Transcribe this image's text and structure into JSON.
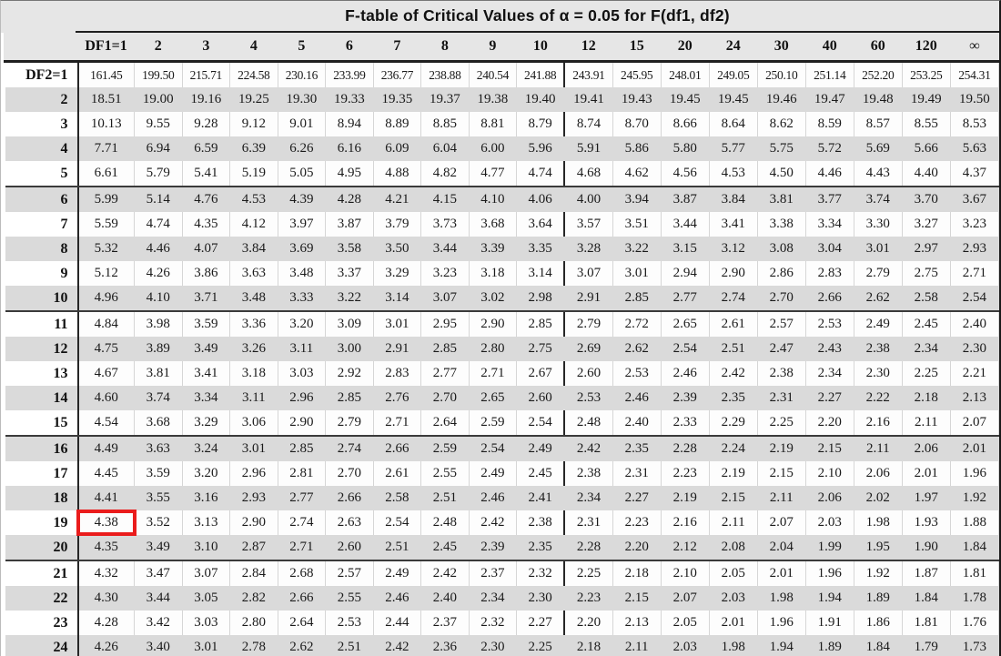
{
  "title": "F-table of Critical Values of α = 0.05 for F(df1, df2)",
  "table": {
    "columns": [
      "DF1=1",
      "2",
      "3",
      "4",
      "5",
      "6",
      "7",
      "8",
      "9",
      "10",
      "12",
      "15",
      "20",
      "24",
      "30",
      "40",
      "60",
      "120",
      "∞"
    ],
    "corner_label": "",
    "rows": [
      {
        "label": "DF2=1",
        "values": [
          "161.45",
          "199.50",
          "215.71",
          "224.58",
          "230.16",
          "233.99",
          "236.77",
          "238.88",
          "240.54",
          "241.88",
          "243.91",
          "245.95",
          "248.01",
          "249.05",
          "250.10",
          "251.14",
          "252.20",
          "253.25",
          "254.31"
        ]
      },
      {
        "label": "2",
        "values": [
          "18.51",
          "19.00",
          "19.16",
          "19.25",
          "19.30",
          "19.33",
          "19.35",
          "19.37",
          "19.38",
          "19.40",
          "19.41",
          "19.43",
          "19.45",
          "19.45",
          "19.46",
          "19.47",
          "19.48",
          "19.49",
          "19.50"
        ]
      },
      {
        "label": "3",
        "values": [
          "10.13",
          "9.55",
          "9.28",
          "9.12",
          "9.01",
          "8.94",
          "8.89",
          "8.85",
          "8.81",
          "8.79",
          "8.74",
          "8.70",
          "8.66",
          "8.64",
          "8.62",
          "8.59",
          "8.57",
          "8.55",
          "8.53"
        ]
      },
      {
        "label": "4",
        "values": [
          "7.71",
          "6.94",
          "6.59",
          "6.39",
          "6.26",
          "6.16",
          "6.09",
          "6.04",
          "6.00",
          "5.96",
          "5.91",
          "5.86",
          "5.80",
          "5.77",
          "5.75",
          "5.72",
          "5.69",
          "5.66",
          "5.63"
        ]
      },
      {
        "label": "5",
        "values": [
          "6.61",
          "5.79",
          "5.41",
          "5.19",
          "5.05",
          "4.95",
          "4.88",
          "4.82",
          "4.77",
          "4.74",
          "4.68",
          "4.62",
          "4.56",
          "4.53",
          "4.50",
          "4.46",
          "4.43",
          "4.40",
          "4.37"
        ]
      },
      {
        "label": "6",
        "values": [
          "5.99",
          "5.14",
          "4.76",
          "4.53",
          "4.39",
          "4.28",
          "4.21",
          "4.15",
          "4.10",
          "4.06",
          "4.00",
          "3.94",
          "3.87",
          "3.84",
          "3.81",
          "3.77",
          "3.74",
          "3.70",
          "3.67"
        ]
      },
      {
        "label": "7",
        "values": [
          "5.59",
          "4.74",
          "4.35",
          "4.12",
          "3.97",
          "3.87",
          "3.79",
          "3.73",
          "3.68",
          "3.64",
          "3.57",
          "3.51",
          "3.44",
          "3.41",
          "3.38",
          "3.34",
          "3.30",
          "3.27",
          "3.23"
        ]
      },
      {
        "label": "8",
        "values": [
          "5.32",
          "4.46",
          "4.07",
          "3.84",
          "3.69",
          "3.58",
          "3.50",
          "3.44",
          "3.39",
          "3.35",
          "3.28",
          "3.22",
          "3.15",
          "3.12",
          "3.08",
          "3.04",
          "3.01",
          "2.97",
          "2.93"
        ]
      },
      {
        "label": "9",
        "values": [
          "5.12",
          "4.26",
          "3.86",
          "3.63",
          "3.48",
          "3.37",
          "3.29",
          "3.23",
          "3.18",
          "3.14",
          "3.07",
          "3.01",
          "2.94",
          "2.90",
          "2.86",
          "2.83",
          "2.79",
          "2.75",
          "2.71"
        ]
      },
      {
        "label": "10",
        "values": [
          "4.96",
          "4.10",
          "3.71",
          "3.48",
          "3.33",
          "3.22",
          "3.14",
          "3.07",
          "3.02",
          "2.98",
          "2.91",
          "2.85",
          "2.77",
          "2.74",
          "2.70",
          "2.66",
          "2.62",
          "2.58",
          "2.54"
        ]
      },
      {
        "label": "11",
        "values": [
          "4.84",
          "3.98",
          "3.59",
          "3.36",
          "3.20",
          "3.09",
          "3.01",
          "2.95",
          "2.90",
          "2.85",
          "2.79",
          "2.72",
          "2.65",
          "2.61",
          "2.57",
          "2.53",
          "2.49",
          "2.45",
          "2.40"
        ]
      },
      {
        "label": "12",
        "values": [
          "4.75",
          "3.89",
          "3.49",
          "3.26",
          "3.11",
          "3.00",
          "2.91",
          "2.85",
          "2.80",
          "2.75",
          "2.69",
          "2.62",
          "2.54",
          "2.51",
          "2.47",
          "2.43",
          "2.38",
          "2.34",
          "2.30"
        ]
      },
      {
        "label": "13",
        "values": [
          "4.67",
          "3.81",
          "3.41",
          "3.18",
          "3.03",
          "2.92",
          "2.83",
          "2.77",
          "2.71",
          "2.67",
          "2.60",
          "2.53",
          "2.46",
          "2.42",
          "2.38",
          "2.34",
          "2.30",
          "2.25",
          "2.21"
        ]
      },
      {
        "label": "14",
        "values": [
          "4.60",
          "3.74",
          "3.34",
          "3.11",
          "2.96",
          "2.85",
          "2.76",
          "2.70",
          "2.65",
          "2.60",
          "2.53",
          "2.46",
          "2.39",
          "2.35",
          "2.31",
          "2.27",
          "2.22",
          "2.18",
          "2.13"
        ]
      },
      {
        "label": "15",
        "values": [
          "4.54",
          "3.68",
          "3.29",
          "3.06",
          "2.90",
          "2.79",
          "2.71",
          "2.64",
          "2.59",
          "2.54",
          "2.48",
          "2.40",
          "2.33",
          "2.29",
          "2.25",
          "2.20",
          "2.16",
          "2.11",
          "2.07"
        ]
      },
      {
        "label": "16",
        "values": [
          "4.49",
          "3.63",
          "3.24",
          "3.01",
          "2.85",
          "2.74",
          "2.66",
          "2.59",
          "2.54",
          "2.49",
          "2.42",
          "2.35",
          "2.28",
          "2.24",
          "2.19",
          "2.15",
          "2.11",
          "2.06",
          "2.01"
        ]
      },
      {
        "label": "17",
        "values": [
          "4.45",
          "3.59",
          "3.20",
          "2.96",
          "2.81",
          "2.70",
          "2.61",
          "2.55",
          "2.49",
          "2.45",
          "2.38",
          "2.31",
          "2.23",
          "2.19",
          "2.15",
          "2.10",
          "2.06",
          "2.01",
          "1.96"
        ]
      },
      {
        "label": "18",
        "values": [
          "4.41",
          "3.55",
          "3.16",
          "2.93",
          "2.77",
          "2.66",
          "2.58",
          "2.51",
          "2.46",
          "2.41",
          "2.34",
          "2.27",
          "2.19",
          "2.15",
          "2.11",
          "2.06",
          "2.02",
          "1.97",
          "1.92"
        ]
      },
      {
        "label": "19",
        "values": [
          "4.38",
          "3.52",
          "3.13",
          "2.90",
          "2.74",
          "2.63",
          "2.54",
          "2.48",
          "2.42",
          "2.38",
          "2.31",
          "2.23",
          "2.16",
          "2.11",
          "2.07",
          "2.03",
          "1.98",
          "1.93",
          "1.88"
        ]
      },
      {
        "label": "20",
        "values": [
          "4.35",
          "3.49",
          "3.10",
          "2.87",
          "2.71",
          "2.60",
          "2.51",
          "2.45",
          "2.39",
          "2.35",
          "2.28",
          "2.20",
          "2.12",
          "2.08",
          "2.04",
          "1.99",
          "1.95",
          "1.90",
          "1.84"
        ]
      },
      {
        "label": "21",
        "values": [
          "4.32",
          "3.47",
          "3.07",
          "2.84",
          "2.68",
          "2.57",
          "2.49",
          "2.42",
          "2.37",
          "2.32",
          "2.25",
          "2.18",
          "2.10",
          "2.05",
          "2.01",
          "1.96",
          "1.92",
          "1.87",
          "1.81"
        ]
      },
      {
        "label": "22",
        "values": [
          "4.30",
          "3.44",
          "3.05",
          "2.82",
          "2.66",
          "2.55",
          "2.46",
          "2.40",
          "2.34",
          "2.30",
          "2.23",
          "2.15",
          "2.07",
          "2.03",
          "1.98",
          "1.94",
          "1.89",
          "1.84",
          "1.78"
        ]
      },
      {
        "label": "23",
        "values": [
          "4.28",
          "3.42",
          "3.03",
          "2.80",
          "2.64",
          "2.53",
          "2.44",
          "2.37",
          "2.32",
          "2.27",
          "2.20",
          "2.13",
          "2.05",
          "2.01",
          "1.96",
          "1.91",
          "1.86",
          "1.81",
          "1.76"
        ]
      },
      {
        "label": "24",
        "values": [
          "4.26",
          "3.40",
          "3.01",
          "2.78",
          "2.62",
          "2.51",
          "2.42",
          "2.36",
          "2.30",
          "2.25",
          "2.18",
          "2.11",
          "2.03",
          "1.98",
          "1.94",
          "1.89",
          "1.84",
          "1.79",
          "1.73"
        ]
      }
    ],
    "group_end_labels": [
      "5",
      "10",
      "15",
      "20"
    ],
    "column_divider_after": "10",
    "highlight": {
      "row_label": "19",
      "col_index": 0,
      "value": "4.38"
    }
  },
  "colors": {
    "highlight_border": "#ea1c1c",
    "zebra_gray": "#dadada",
    "header_gray": "#e6e6e6",
    "rule_black": "#1f1f1f"
  }
}
